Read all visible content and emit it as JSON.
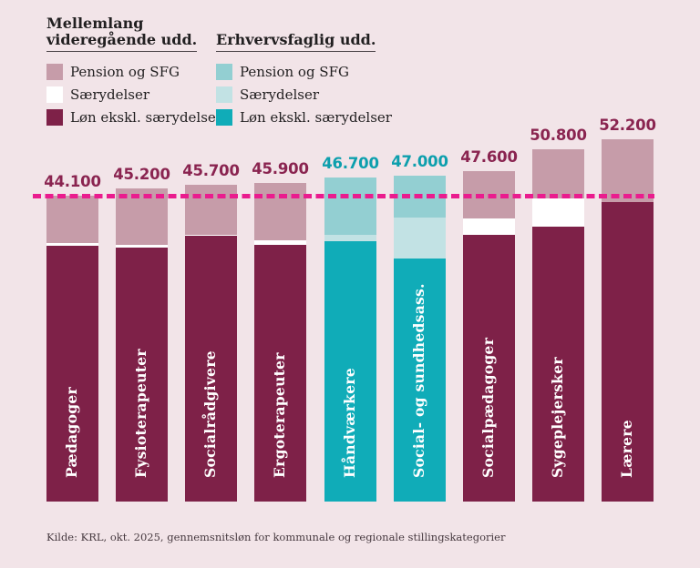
{
  "colors": {
    "background": "#f2e4e8",
    "dashed_line": "#ea1c8e",
    "heading_text": "#211f20",
    "bar_label_text": "#ffffff",
    "source_text": "#473a40",
    "mvu": {
      "pension": "#c69ca9",
      "saer": "#ffffff",
      "loen": "#7e2148",
      "label": "#8a2450"
    },
    "efu": {
      "pension": "#93cfd2",
      "saer": "#c2e2e4",
      "loen": "#10acb8",
      "label": "#0d9fad"
    }
  },
  "legend": {
    "mvu": {
      "heading_line1": "Mellemlang",
      "heading_line2": "videregående udd.",
      "items": [
        {
          "label": "Pension og SFG"
        },
        {
          "label": "Særydelser"
        },
        {
          "label": "Løn ekskl. særydelser"
        }
      ]
    },
    "efu": {
      "heading": "Erhvervsfaglig udd.",
      "items": [
        {
          "label": "Pension og SFG"
        },
        {
          "label": "Særydelser"
        },
        {
          "label": "Løn ekskl. særydelser"
        }
      ]
    }
  },
  "source": "Kilde: KRL, okt. 2025, gennemsnitsløn for kommunale og regionale stillingskategorier",
  "chart_data": {
    "type": "bar",
    "stacked": true,
    "categories": [
      "Pædagoger",
      "Fysioterapeuter",
      "Socialrådgivere",
      "Ergoterapeuter",
      "Håndværkere",
      "Social- og sundhedsass.",
      "Socialpædagoger",
      "Sygeplejersker",
      "Lærere"
    ],
    "groups": [
      "mvu",
      "mvu",
      "mvu",
      "mvu",
      "efu",
      "efu",
      "mvu",
      "mvu",
      "mvu"
    ],
    "totals": [
      44100,
      45200,
      45700,
      45900,
      46700,
      47000,
      47600,
      50800,
      52200
    ],
    "totals_display": [
      "44.100",
      "45.200",
      "45.700",
      "45.900",
      "46.700",
      "47.000",
      "47.600",
      "50.800",
      "52.200"
    ],
    "series": [
      {
        "name": "Løn ekskl. særydelser",
        "key": "loen",
        "values": [
          36900,
          36600,
          38300,
          37000,
          37600,
          35100,
          38400,
          39600,
          43200
        ]
      },
      {
        "name": "Særydelser",
        "key": "saer",
        "values": [
          400,
          400,
          200,
          700,
          800,
          5900,
          2400,
          4100,
          0
        ]
      },
      {
        "name": "Pension og SFG",
        "key": "pension",
        "values": [
          6800,
          8200,
          7200,
          8200,
          8300,
          6000,
          6800,
          7100,
          9000
        ]
      }
    ],
    "reference_line": {
      "value": 44100,
      "style": "dashed"
    },
    "ylim": [
      0,
      52200
    ],
    "legend_position": "top",
    "grid": false
  }
}
